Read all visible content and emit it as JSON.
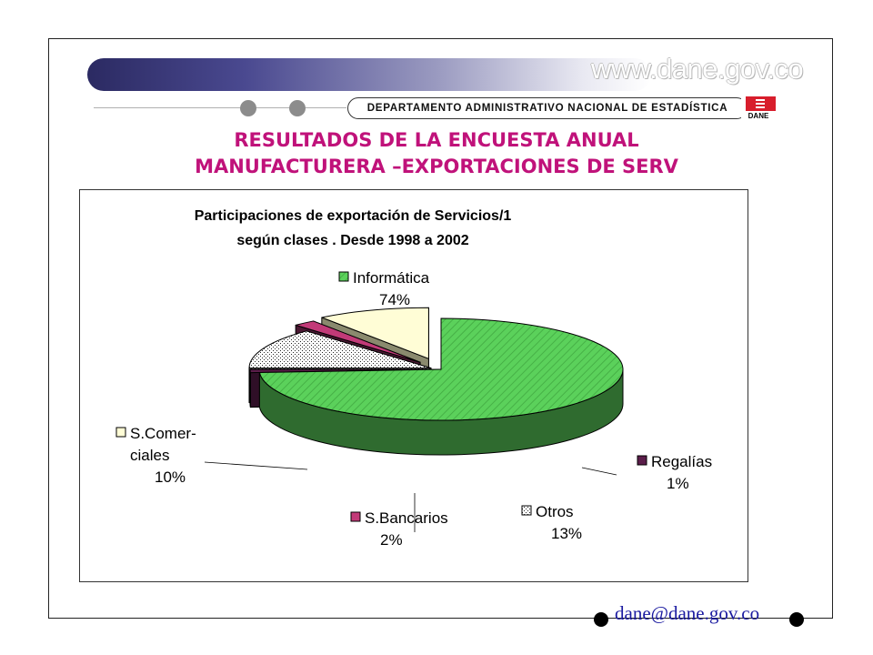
{
  "header": {
    "site_url": "www.dane.gov.co",
    "department": "DEPARTAMENTO ADMINISTRATIVO NACIONAL DE ESTADÍSTICA",
    "logo_text": "DANE"
  },
  "slide": {
    "title_line1": "RESULTADOS DE LA ENCUESTA ANUAL",
    "title_line2": "MANUFACTURERA –EXPORTACIONES DE SERV"
  },
  "chart_data": {
    "type": "pie",
    "title": "Participaciones de exportación de Servicios/1 según clases . Desde  1998 a 2002",
    "title_lines": [
      "Participaciones de exportación de Servicios/1",
      "según clases . Desde  1998 a 2002"
    ],
    "three_d": true,
    "labels_on_slices": true,
    "slices": [
      {
        "name": "Informática",
        "label_lines": [
          "Informática"
        ],
        "value": 74,
        "value_label": "74%",
        "color": "#5bd15b",
        "dark": "#2f6b2f",
        "pattern": "diagonal-hatch"
      },
      {
        "name": "Regalías",
        "label_lines": [
          "Regalías"
        ],
        "value": 1,
        "value_label": "1%",
        "color": "#5b1d4a",
        "dark": "#2f0f27",
        "pattern": "solid"
      },
      {
        "name": "Otros",
        "label_lines": [
          "Otros"
        ],
        "value": 13,
        "value_label": "13%",
        "color": "#ffffff",
        "dark": "#8a8a8a",
        "pattern": "dotted"
      },
      {
        "name": "S.Bancarios",
        "label_lines": [
          "S.Bancarios"
        ],
        "value": 2,
        "value_label": "2%",
        "color": "#c23a78",
        "dark": "#4a1832",
        "pattern": "solid"
      },
      {
        "name": "S.Comerciales",
        "label_lines": [
          "S.Comer-",
          "ciales"
        ],
        "value": 10,
        "value_label": "10%",
        "color": "#fffdd6",
        "dark": "#8a8a6e",
        "pattern": "solid"
      }
    ]
  },
  "footer": {
    "email": "dane@dane.gov.co"
  }
}
